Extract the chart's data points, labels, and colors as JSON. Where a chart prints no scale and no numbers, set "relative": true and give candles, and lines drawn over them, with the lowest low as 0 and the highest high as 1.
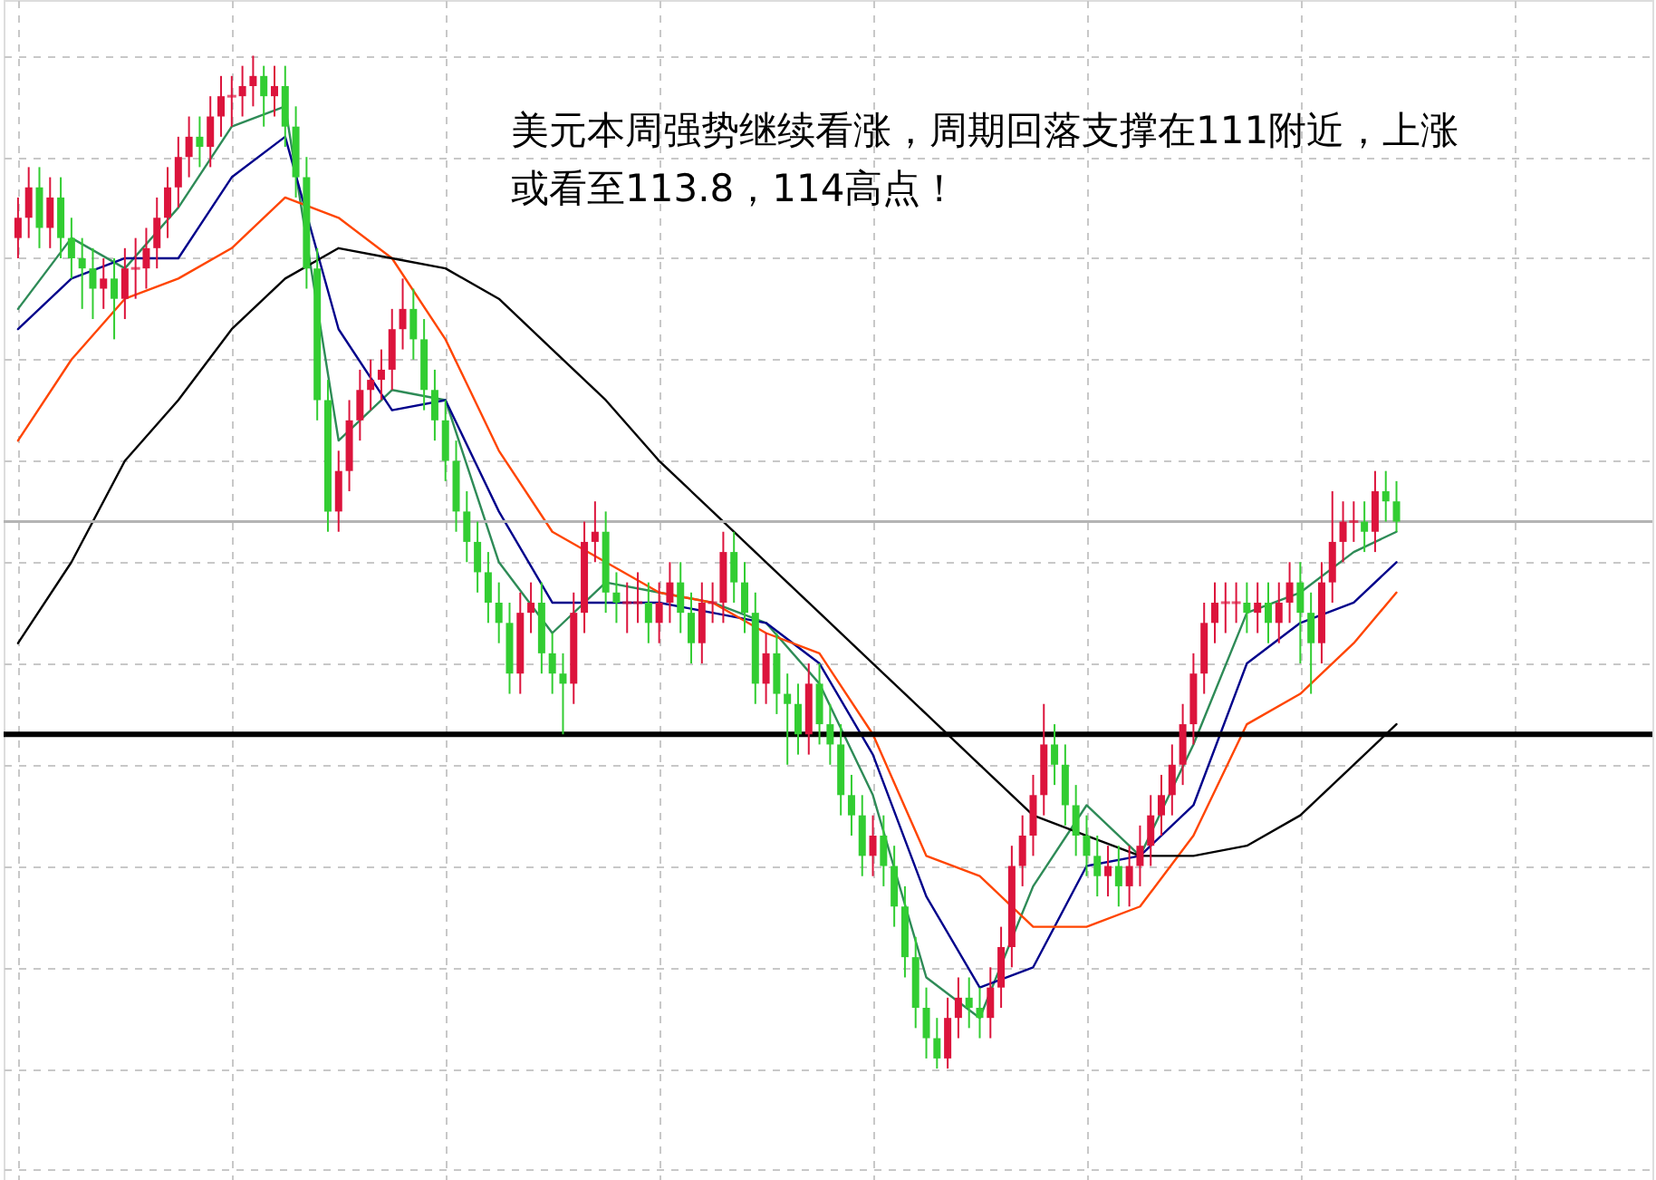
{
  "chart_data": {
    "type": "candlestick",
    "relative": true,
    "grid": true,
    "annotations": [
      "美元本周强势继续看涨，周期回落支撑在111附近，上涨或看至113.8，114高点！"
    ],
    "categories": [
      null,
      null,
      null,
      null,
      null,
      null,
      null,
      null,
      null,
      null,
      null,
      null,
      null,
      null,
      null,
      null,
      null,
      null,
      null,
      null,
      null,
      null,
      null,
      null,
      null,
      null,
      null,
      null,
      null,
      null,
      null,
      null,
      null,
      null,
      null,
      null,
      null,
      null,
      null,
      null,
      null,
      null,
      null,
      null,
      null,
      null,
      null,
      null,
      null,
      null,
      null,
      null,
      null,
      null,
      null,
      null,
      null,
      null,
      null,
      null,
      null,
      null,
      null,
      null,
      null,
      null,
      null,
      null,
      null,
      null,
      null,
      null,
      null,
      null,
      null,
      null,
      null,
      null,
      null,
      null,
      null,
      null,
      null,
      null,
      null,
      null,
      null,
      null,
      null,
      null,
      null,
      null,
      null,
      null,
      null,
      null,
      null,
      null,
      null,
      null,
      null,
      null,
      null,
      null,
      null,
      null,
      null,
      null,
      null,
      null,
      null,
      null,
      null,
      null,
      null,
      null,
      null,
      null,
      null,
      null,
      null,
      null,
      null,
      null,
      null,
      null,
      null,
      null,
      null,
      null
    ],
    "ohlc": [
      [
        0.82,
        0.86,
        0.8,
        0.84
      ],
      [
        0.84,
        0.89,
        0.82,
        0.87
      ],
      [
        0.87,
        0.89,
        0.81,
        0.83
      ],
      [
        0.83,
        0.88,
        0.81,
        0.86
      ],
      [
        0.86,
        0.88,
        0.8,
        0.82
      ],
      [
        0.82,
        0.84,
        0.78,
        0.8
      ],
      [
        0.8,
        0.82,
        0.75,
        0.79
      ],
      [
        0.79,
        0.81,
        0.74,
        0.77
      ],
      [
        0.77,
        0.8,
        0.75,
        0.78
      ],
      [
        0.78,
        0.8,
        0.72,
        0.76
      ],
      [
        0.76,
        0.81,
        0.74,
        0.79
      ],
      [
        0.79,
        0.82,
        0.76,
        0.79
      ],
      [
        0.79,
        0.83,
        0.77,
        0.81
      ],
      [
        0.81,
        0.86,
        0.79,
        0.84
      ],
      [
        0.84,
        0.89,
        0.82,
        0.87
      ],
      [
        0.87,
        0.92,
        0.85,
        0.9
      ],
      [
        0.9,
        0.94,
        0.88,
        0.92
      ],
      [
        0.92,
        0.94,
        0.89,
        0.91
      ],
      [
        0.91,
        0.96,
        0.89,
        0.94
      ],
      [
        0.94,
        0.98,
        0.92,
        0.96
      ],
      [
        0.96,
        0.98,
        0.93,
        0.96
      ],
      [
        0.96,
        0.99,
        0.94,
        0.97
      ],
      [
        0.97,
        1.0,
        0.95,
        0.98
      ],
      [
        0.98,
        0.99,
        0.93,
        0.96
      ],
      [
        0.96,
        0.99,
        0.94,
        0.97
      ],
      [
        0.97,
        0.99,
        0.91,
        0.93
      ],
      [
        0.93,
        0.95,
        0.86,
        0.88
      ],
      [
        0.88,
        0.9,
        0.77,
        0.79
      ],
      [
        0.79,
        0.81,
        0.64,
        0.66
      ],
      [
        0.66,
        0.68,
        0.53,
        0.55
      ],
      [
        0.55,
        0.61,
        0.53,
        0.59
      ],
      [
        0.59,
        0.66,
        0.57,
        0.64
      ],
      [
        0.64,
        0.69,
        0.62,
        0.67
      ],
      [
        0.67,
        0.7,
        0.65,
        0.68
      ],
      [
        0.68,
        0.71,
        0.66,
        0.69
      ],
      [
        0.69,
        0.75,
        0.67,
        0.73
      ],
      [
        0.73,
        0.78,
        0.71,
        0.75
      ],
      [
        0.75,
        0.77,
        0.7,
        0.72
      ],
      [
        0.72,
        0.74,
        0.65,
        0.67
      ],
      [
        0.67,
        0.69,
        0.62,
        0.64
      ],
      [
        0.64,
        0.66,
        0.58,
        0.6
      ],
      [
        0.6,
        0.62,
        0.53,
        0.55
      ],
      [
        0.55,
        0.57,
        0.5,
        0.52
      ],
      [
        0.52,
        0.54,
        0.47,
        0.49
      ],
      [
        0.49,
        0.51,
        0.44,
        0.46
      ],
      [
        0.46,
        0.48,
        0.42,
        0.44
      ],
      [
        0.44,
        0.46,
        0.37,
        0.39
      ],
      [
        0.39,
        0.47,
        0.37,
        0.45
      ],
      [
        0.45,
        0.48,
        0.43,
        0.46
      ],
      [
        0.46,
        0.48,
        0.39,
        0.41
      ],
      [
        0.41,
        0.43,
        0.37,
        0.39
      ],
      [
        0.39,
        0.41,
        0.33,
        0.38
      ],
      [
        0.38,
        0.47,
        0.36,
        0.45
      ],
      [
        0.45,
        0.54,
        0.43,
        0.52
      ],
      [
        0.52,
        0.56,
        0.5,
        0.53
      ],
      [
        0.53,
        0.55,
        0.45,
        0.47
      ],
      [
        0.47,
        0.49,
        0.44,
        0.46
      ],
      [
        0.46,
        0.48,
        0.43,
        0.46
      ],
      [
        0.46,
        0.49,
        0.44,
        0.46
      ],
      [
        0.46,
        0.48,
        0.42,
        0.44
      ],
      [
        0.44,
        0.48,
        0.42,
        0.46
      ],
      [
        0.46,
        0.5,
        0.44,
        0.48
      ],
      [
        0.48,
        0.5,
        0.43,
        0.45
      ],
      [
        0.45,
        0.47,
        0.4,
        0.42
      ],
      [
        0.42,
        0.48,
        0.4,
        0.46
      ],
      [
        0.46,
        0.48,
        0.44,
        0.46
      ],
      [
        0.46,
        0.53,
        0.44,
        0.51
      ],
      [
        0.51,
        0.53,
        0.46,
        0.48
      ],
      [
        0.48,
        0.5,
        0.43,
        0.45
      ],
      [
        0.45,
        0.47,
        0.36,
        0.38
      ],
      [
        0.38,
        0.43,
        0.36,
        0.41
      ],
      [
        0.41,
        0.43,
        0.35,
        0.37
      ],
      [
        0.37,
        0.39,
        0.3,
        0.36
      ],
      [
        0.36,
        0.38,
        0.31,
        0.33
      ],
      [
        0.33,
        0.4,
        0.31,
        0.38
      ],
      [
        0.38,
        0.4,
        0.32,
        0.34
      ],
      [
        0.34,
        0.36,
        0.3,
        0.32
      ],
      [
        0.32,
        0.34,
        0.25,
        0.27
      ],
      [
        0.27,
        0.29,
        0.23,
        0.25
      ],
      [
        0.25,
        0.27,
        0.19,
        0.21
      ],
      [
        0.21,
        0.25,
        0.19,
        0.23
      ],
      [
        0.23,
        0.25,
        0.18,
        0.2
      ],
      [
        0.2,
        0.22,
        0.14,
        0.16
      ],
      [
        0.16,
        0.18,
        0.09,
        0.11
      ],
      [
        0.11,
        0.13,
        0.04,
        0.06
      ],
      [
        0.06,
        0.08,
        0.01,
        0.03
      ],
      [
        0.03,
        0.05,
        0.0,
        0.01
      ],
      [
        0.01,
        0.07,
        0.0,
        0.05
      ],
      [
        0.05,
        0.09,
        0.03,
        0.07
      ],
      [
        0.07,
        0.09,
        0.04,
        0.06
      ],
      [
        0.06,
        0.08,
        0.03,
        0.05
      ],
      [
        0.05,
        0.1,
        0.03,
        0.08
      ],
      [
        0.08,
        0.14,
        0.06,
        0.12
      ],
      [
        0.12,
        0.22,
        0.1,
        0.2
      ],
      [
        0.2,
        0.25,
        0.18,
        0.23
      ],
      [
        0.23,
        0.29,
        0.21,
        0.27
      ],
      [
        0.27,
        0.36,
        0.25,
        0.32
      ],
      [
        0.32,
        0.34,
        0.28,
        0.3
      ],
      [
        0.3,
        0.32,
        0.24,
        0.26
      ],
      [
        0.26,
        0.28,
        0.21,
        0.23
      ],
      [
        0.23,
        0.25,
        0.19,
        0.21
      ],
      [
        0.21,
        0.23,
        0.17,
        0.19
      ],
      [
        0.19,
        0.22,
        0.17,
        0.2
      ],
      [
        0.2,
        0.22,
        0.16,
        0.18
      ],
      [
        0.18,
        0.22,
        0.16,
        0.2
      ],
      [
        0.2,
        0.24,
        0.18,
        0.22
      ],
      [
        0.22,
        0.27,
        0.2,
        0.25
      ],
      [
        0.25,
        0.29,
        0.23,
        0.27
      ],
      [
        0.27,
        0.32,
        0.25,
        0.3
      ],
      [
        0.3,
        0.36,
        0.28,
        0.34
      ],
      [
        0.34,
        0.41,
        0.32,
        0.39
      ],
      [
        0.39,
        0.46,
        0.37,
        0.44
      ],
      [
        0.44,
        0.48,
        0.42,
        0.46
      ],
      [
        0.46,
        0.48,
        0.43,
        0.46
      ],
      [
        0.46,
        0.48,
        0.44,
        0.46
      ],
      [
        0.46,
        0.48,
        0.43,
        0.45
      ],
      [
        0.45,
        0.48,
        0.43,
        0.46
      ],
      [
        0.46,
        0.48,
        0.42,
        0.44
      ],
      [
        0.44,
        0.48,
        0.42,
        0.46
      ],
      [
        0.46,
        0.5,
        0.44,
        0.48
      ],
      [
        0.48,
        0.5,
        0.4,
        0.45
      ],
      [
        0.45,
        0.47,
        0.37,
        0.42
      ],
      [
        0.42,
        0.5,
        0.4,
        0.48
      ],
      [
        0.48,
        0.57,
        0.46,
        0.52
      ],
      [
        0.52,
        0.56,
        0.5,
        0.54
      ],
      [
        0.54,
        0.56,
        0.52,
        0.54
      ],
      [
        0.54,
        0.56,
        0.51,
        0.53
      ],
      [
        0.53,
        0.59,
        0.51,
        0.57
      ],
      [
        0.57,
        0.59,
        0.54,
        0.56
      ],
      [
        0.56,
        0.58,
        0.53,
        0.54
      ]
    ],
    "series": [
      {
        "type": "line",
        "color": "#2e8b57",
        "values": [
          0.75,
          null,
          null,
          null,
          null,
          0.82,
          null,
          null,
          null,
          null,
          0.79,
          null,
          null,
          null,
          null,
          0.85,
          null,
          null,
          null,
          null,
          0.93,
          null,
          null,
          null,
          null,
          0.95,
          null,
          null,
          null,
          null,
          0.62,
          null,
          null,
          null,
          null,
          0.67,
          null,
          null,
          null,
          null,
          0.66,
          null,
          null,
          null,
          null,
          0.5,
          null,
          null,
          null,
          null,
          0.43,
          null,
          null,
          null,
          null,
          0.48,
          null,
          null,
          null,
          null,
          0.47,
          null,
          null,
          null,
          null,
          0.46,
          null,
          null,
          null,
          null,
          0.44,
          null,
          null,
          null,
          null,
          0.38,
          null,
          null,
          null,
          null,
          0.27,
          null,
          null,
          null,
          null,
          0.09,
          null,
          null,
          null,
          null,
          0.05,
          null,
          null,
          null,
          null,
          0.18,
          null,
          null,
          null,
          null,
          0.26,
          null,
          null,
          null,
          null,
          0.21,
          null,
          null,
          null,
          null,
          0.32,
          null,
          null,
          null,
          null,
          0.45,
          null,
          null,
          null,
          null,
          0.47,
          null,
          null,
          null,
          null,
          0.51,
          null,
          null,
          null,
          0.53
        ]
      },
      {
        "type": "line",
        "color": "#00008b",
        "values": [
          0.73,
          null,
          null,
          null,
          null,
          0.78,
          null,
          null,
          null,
          null,
          0.8,
          null,
          null,
          null,
          null,
          0.8,
          null,
          null,
          null,
          null,
          0.88,
          null,
          null,
          null,
          null,
          0.92,
          null,
          null,
          null,
          null,
          0.73,
          null,
          null,
          null,
          null,
          0.65,
          null,
          null,
          null,
          null,
          0.66,
          null,
          null,
          null,
          null,
          0.55,
          null,
          null,
          null,
          null,
          0.46,
          null,
          null,
          null,
          null,
          0.46,
          null,
          null,
          null,
          null,
          0.46,
          null,
          null,
          null,
          null,
          0.45,
          null,
          null,
          null,
          null,
          0.44,
          null,
          null,
          null,
          null,
          0.4,
          null,
          null,
          null,
          null,
          0.31,
          null,
          null,
          null,
          null,
          0.17,
          null,
          null,
          null,
          null,
          0.08,
          null,
          null,
          null,
          null,
          0.1,
          null,
          null,
          null,
          null,
          0.2,
          null,
          null,
          null,
          null,
          0.21,
          null,
          null,
          null,
          null,
          0.26,
          null,
          null,
          null,
          null,
          0.4,
          null,
          null,
          null,
          null,
          0.44,
          null,
          null,
          null,
          null,
          0.46,
          null,
          null,
          null,
          0.5
        ]
      },
      {
        "type": "line",
        "color": "#ff4500",
        "values": [
          0.62,
          null,
          null,
          null,
          null,
          0.7,
          null,
          null,
          null,
          null,
          0.76,
          null,
          null,
          null,
          null,
          0.78,
          null,
          null,
          null,
          null,
          0.81,
          null,
          null,
          null,
          null,
          0.86,
          null,
          null,
          null,
          null,
          0.84,
          null,
          null,
          null,
          null,
          0.8,
          null,
          null,
          null,
          null,
          0.72,
          null,
          null,
          null,
          null,
          0.61,
          null,
          null,
          null,
          null,
          0.53,
          null,
          null,
          null,
          null,
          0.5,
          null,
          null,
          null,
          null,
          0.47,
          null,
          null,
          null,
          null,
          0.46,
          null,
          null,
          null,
          null,
          0.43,
          null,
          null,
          null,
          null,
          0.41,
          null,
          null,
          null,
          null,
          0.33,
          null,
          null,
          null,
          null,
          0.21,
          null,
          null,
          null,
          null,
          0.19,
          null,
          null,
          null,
          null,
          0.14,
          null,
          null,
          null,
          null,
          0.14,
          null,
          null,
          null,
          null,
          0.16,
          null,
          null,
          null,
          null,
          0.23,
          null,
          null,
          null,
          null,
          0.34,
          null,
          null,
          null,
          null,
          0.37,
          null,
          null,
          null,
          null,
          0.42,
          null,
          null,
          null,
          0.47
        ]
      },
      {
        "type": "line",
        "color": "#000000",
        "values": [
          0.42,
          null,
          null,
          null,
          null,
          0.5,
          null,
          null,
          null,
          null,
          0.6,
          null,
          null,
          null,
          null,
          0.66,
          null,
          null,
          null,
          null,
          0.73,
          null,
          null,
          null,
          null,
          0.78,
          null,
          null,
          null,
          null,
          0.81,
          null,
          null,
          null,
          null,
          0.8,
          null,
          null,
          null,
          null,
          0.79,
          null,
          null,
          null,
          null,
          0.76,
          null,
          null,
          null,
          null,
          0.71,
          null,
          null,
          null,
          null,
          0.66,
          null,
          null,
          null,
          null,
          0.6,
          null,
          null,
          null,
          null,
          0.55,
          null,
          null,
          null,
          null,
          0.5,
          null,
          null,
          null,
          null,
          0.45,
          null,
          null,
          null,
          null,
          0.4,
          null,
          null,
          null,
          null,
          0.35,
          null,
          null,
          null,
          null,
          0.3,
          null,
          null,
          null,
          null,
          0.25,
          null,
          null,
          null,
          null,
          0.23,
          null,
          null,
          null,
          null,
          0.21,
          null,
          null,
          null,
          null,
          0.21,
          null,
          null,
          null,
          null,
          0.22,
          null,
          null,
          null,
          null,
          0.25,
          null,
          null,
          null,
          null,
          0.3,
          null,
          null,
          null,
          0.34
        ]
      }
    ],
    "ref_lines": [
      {
        "axis": "y",
        "value": 0.33,
        "color": "#000000"
      },
      {
        "axis": "y",
        "value": 0.54,
        "color": "#b4b4b4"
      }
    ]
  }
}
